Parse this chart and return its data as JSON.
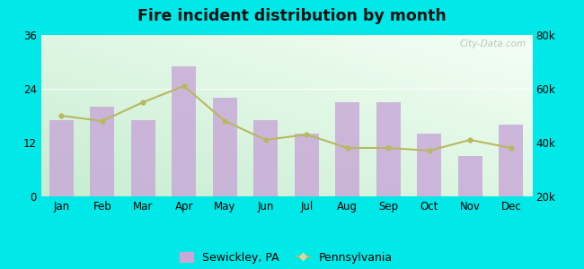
{
  "title": "Fire incident distribution by month",
  "months": [
    "Jan",
    "Feb",
    "Mar",
    "Apr",
    "May",
    "Jun",
    "Jul",
    "Aug",
    "Sep",
    "Oct",
    "Nov",
    "Dec"
  ],
  "sewickley_values": [
    17,
    20,
    17,
    29,
    22,
    17,
    14,
    21,
    21,
    14,
    9,
    16
  ],
  "pennsylvania_values": [
    50000,
    48000,
    55000,
    61000,
    48000,
    41000,
    43000,
    38000,
    38000,
    37000,
    41000,
    38000
  ],
  "bar_color": "#c8a8d8",
  "line_color": "#b8b860",
  "background_outer": "#00e8e8",
  "left_ylim": [
    0,
    36
  ],
  "right_ylim": [
    20000,
    80000
  ],
  "left_yticks": [
    0,
    12,
    24,
    36
  ],
  "right_yticks": [
    20000,
    40000,
    60000,
    80000
  ],
  "right_ytick_labels": [
    "20k",
    "40k",
    "60k",
    "80k"
  ],
  "legend_sewickley": "Sewickley, PA",
  "legend_pennsylvania": "Pennsylvania",
  "watermark": "City-Data.com"
}
